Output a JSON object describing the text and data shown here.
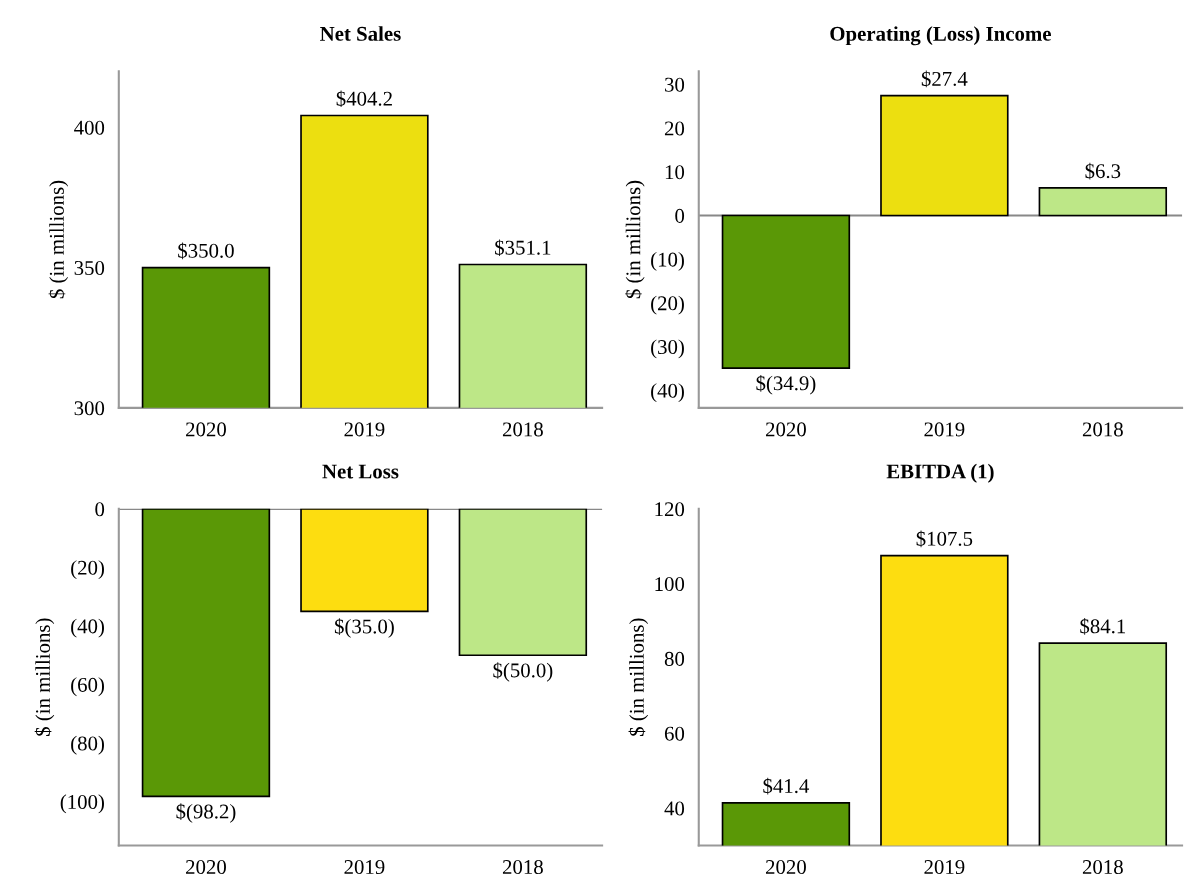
{
  "chart_data": [
    {
      "type": "bar",
      "title": "Net Sales",
      "ylabel": "$ (in millions)",
      "categories": [
        "2020",
        "2019",
        "2018"
      ],
      "values": [
        350.0,
        404.2,
        351.1
      ],
      "colors": [
        "#5a9806",
        "#ecdf10",
        "#bde787"
      ],
      "value_labels": [
        "$350.0",
        "$404.2",
        "$351.1"
      ],
      "ylim": [
        300,
        420
      ],
      "yticks": [
        300,
        350,
        400
      ]
    },
    {
      "type": "bar",
      "title": "Operating (Loss) Income",
      "ylabel": "$ (in millions)",
      "categories": [
        "2020",
        "2019",
        "2018"
      ],
      "values": [
        -34.9,
        27.4,
        6.3
      ],
      "colors": [
        "#5a9806",
        "#ecdf10",
        "#bde787"
      ],
      "value_labels": [
        "$(34.9)",
        "$27.4",
        "$6.3"
      ],
      "ylim": [
        -44,
        33
      ],
      "yticks": [
        {
          "value": -40,
          "label": "(40)"
        },
        {
          "value": -30,
          "label": "(30)"
        },
        {
          "value": -20,
          "label": "(20)"
        },
        {
          "value": -10,
          "label": "(10)"
        },
        0,
        10,
        20,
        30
      ],
      "ref_lines": [
        {
          "axis": "y",
          "value": 0,
          "color": "#888888"
        }
      ]
    },
    {
      "type": "bar",
      "title": "Net Loss",
      "ylabel": "$ (in millions)",
      "categories": [
        "2020",
        "2019",
        "2018"
      ],
      "values": [
        -98.2,
        -35.0,
        -50.0
      ],
      "colors": [
        "#5a9806",
        "#fddd10",
        "#bde787"
      ],
      "value_labels": [
        "$(98.2)",
        "$(35.0)",
        "$(50.0)"
      ],
      "ylim": [
        -115,
        0
      ],
      "yticks": [
        {
          "value": -100,
          "label": "(100)"
        },
        {
          "value": -80,
          "label": "(80)"
        },
        {
          "value": -60,
          "label": "(60)"
        },
        {
          "value": -40,
          "label": "(40)"
        },
        {
          "value": -20,
          "label": "(20)"
        },
        0
      ],
      "ref_lines": [
        {
          "axis": "y",
          "value": 0,
          "color": "#888888"
        }
      ]
    },
    {
      "type": "bar",
      "title": "EBITDA (1)",
      "ylabel": "$ (in millions)",
      "categories": [
        "2020",
        "2019",
        "2018"
      ],
      "values": [
        41.4,
        107.5,
        84.1
      ],
      "colors": [
        "#5a9806",
        "#fddd10",
        "#bde787"
      ],
      "value_labels": [
        "$41.4",
        "$107.5",
        "$84.1"
      ],
      "ylim": [
        30,
        120
      ],
      "yticks": [
        40,
        60,
        80,
        100,
        120
      ]
    }
  ]
}
